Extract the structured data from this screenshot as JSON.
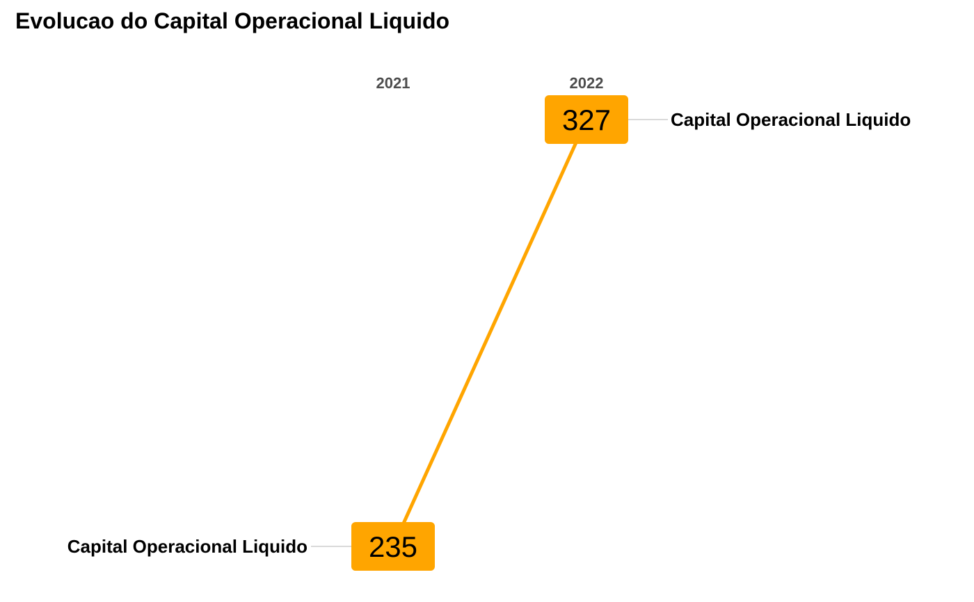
{
  "chart_data": {
    "type": "line",
    "title": "Evolucao do Capital Operacional Liquido",
    "x": [
      "2021",
      "2022"
    ],
    "ylim": [
      235,
      327
    ],
    "grid": false,
    "series": [
      {
        "name": "Capital Operacional Liquido",
        "values": [
          235,
          327
        ],
        "value_labels": [
          "235",
          "327"
        ],
        "start_label": "Capital Operacional Liquido",
        "end_label": "Capital Operacional Liquido",
        "color": "#FFA500"
      }
    ]
  },
  "colors": {
    "series": "#FFA500",
    "leader_line": "#d9d9d9",
    "year_label": "#4d4d4d",
    "text": "#000000"
  }
}
